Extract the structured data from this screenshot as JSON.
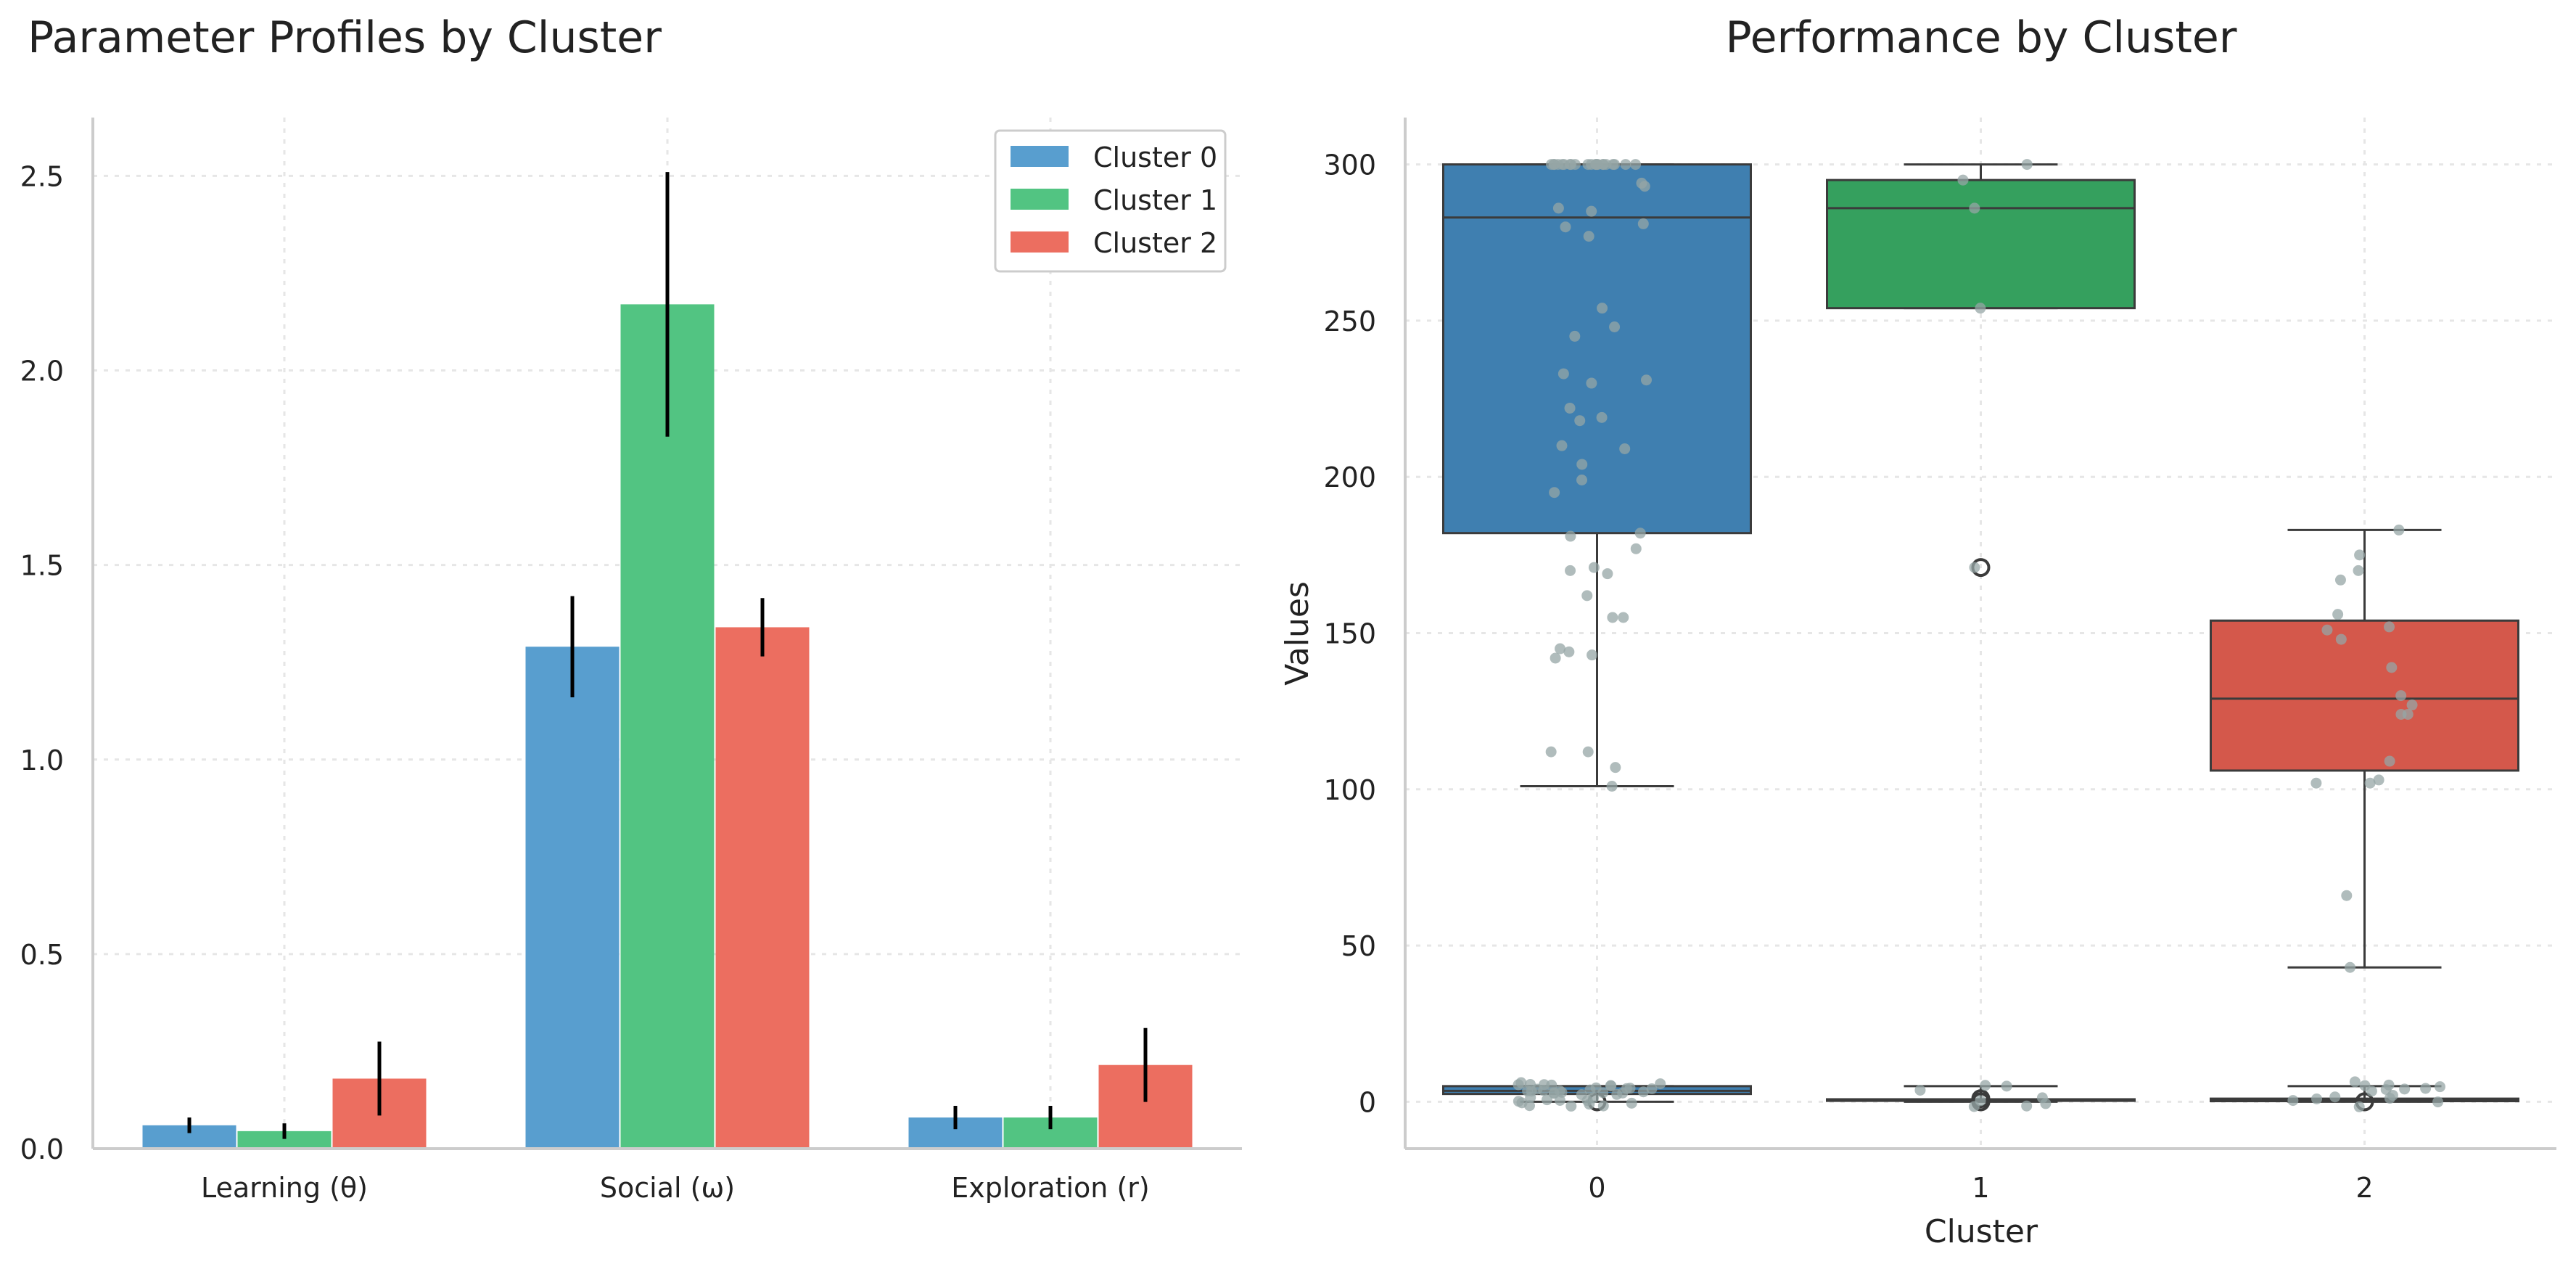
{
  "colors": {
    "cluster0": "#589ecf",
    "cluster1": "#52c482",
    "cluster2": "#ec6e60",
    "box0": "#3f7fb0",
    "box1": "#35a05e",
    "box2": "#d4584b",
    "points": "#95a5a6",
    "axis": "#cccccc",
    "grid": "#e6e6e6",
    "text": "#222222"
  },
  "chart_data": [
    {
      "type": "bar",
      "title": "Parameter Profiles by Cluster",
      "xlabel": "",
      "ylabel": "",
      "categories": [
        "Learning (θ)",
        "Social (ω)",
        "Exploration (r)"
      ],
      "series": [
        {
          "name": "Cluster 0",
          "color_key": "cluster0",
          "values": [
            0.06,
            1.29,
            0.08
          ],
          "errors": [
            0.02,
            0.13,
            0.03
          ]
        },
        {
          "name": "Cluster 1",
          "color_key": "cluster1",
          "values": [
            0.045,
            2.17,
            0.08
          ],
          "errors": [
            0.02,
            0.34,
            0.03
          ]
        },
        {
          "name": "Cluster 2",
          "color_key": "cluster2",
          "values": [
            0.18,
            1.34,
            0.215
          ],
          "errors": [
            0.095,
            0.075,
            0.095
          ]
        }
      ],
      "ylim": [
        0,
        2.65
      ],
      "yticks": [
        "0.0",
        "0.5",
        "1.0",
        "1.5",
        "2.0",
        "2.5"
      ],
      "grid": true,
      "legend": "top-right"
    },
    {
      "type": "box",
      "title": "Performance by Cluster",
      "xlabel": "Cluster",
      "ylabel": "Values",
      "categories": [
        "0",
        "1",
        "2"
      ],
      "ylim": [
        -15,
        315
      ],
      "yticks": [
        "0",
        "50",
        "100",
        "150",
        "200",
        "250",
        "300"
      ],
      "grid": true,
      "boxes_upper": [
        {
          "category": "0",
          "color_key": "box0",
          "whisker_low": 101,
          "q1": 182,
          "median": 283,
          "q3": 300,
          "whisker_high": 300,
          "outliers": []
        },
        {
          "category": "1",
          "color_key": "box1",
          "whisker_low": 254,
          "q1": 254,
          "median": 286,
          "q3": 295,
          "whisker_high": 300,
          "outliers": [
            171
          ]
        },
        {
          "category": "2",
          "color_key": "box2",
          "whisker_low": 43,
          "q1": 106,
          "median": 129,
          "q3": 154,
          "whisker_high": 183,
          "outliers": []
        }
      ],
      "boxes_lower": [
        {
          "category": "0",
          "color_key": "box0",
          "whisker_low": 0,
          "q1": 2.5,
          "median": 3.5,
          "q3": 5,
          "whisker_high": 5,
          "outliers": [
            0
          ]
        },
        {
          "category": "1",
          "color_key": "box1",
          "whisker_low": 0,
          "q1": 0.3,
          "median": 0.5,
          "q3": 0.8,
          "whisker_high": 5,
          "outliers": [
            0,
            1
          ]
        },
        {
          "category": "2",
          "color_key": "box2",
          "whisker_low": 0,
          "q1": 0.2,
          "median": 0.5,
          "q3": 1,
          "whisker_high": 5,
          "outliers": [
            0
          ]
        }
      ],
      "points": [
        {
          "category": 0,
          "values": [
            300,
            300,
            300,
            300,
            300,
            300,
            300,
            300,
            300,
            300,
            300,
            300,
            300,
            300,
            300,
            300,
            300,
            300,
            300,
            300,
            300,
            300,
            294,
            293,
            286,
            285,
            281,
            280,
            277,
            254,
            248,
            245,
            233,
            231,
            230,
            222,
            219,
            218,
            210,
            209,
            204,
            199,
            195,
            182,
            181,
            177,
            171,
            170,
            169,
            162,
            155,
            155,
            145,
            144,
            143,
            142,
            112,
            112,
            107,
            101
          ]
        },
        {
          "category": 1,
          "values": [
            300,
            295,
            286,
            254,
            171
          ]
        },
        {
          "category": 2,
          "values": [
            183,
            175,
            170,
            167,
            156,
            152,
            151,
            148,
            139,
            130,
            127,
            124,
            124,
            109,
            103,
            102,
            102,
            66,
            43
          ]
        },
        {
          "category": 0,
          "values": [
            5,
            5,
            5,
            5,
            5,
            5,
            5,
            5,
            5,
            5,
            5,
            5,
            4,
            4,
            4,
            4,
            4,
            3,
            3,
            3,
            3,
            2,
            2,
            2,
            1,
            1,
            1,
            1,
            0,
            0,
            0,
            0,
            0,
            0,
            0,
            0,
            0,
            0
          ]
        },
        {
          "category": 1,
          "values": [
            5,
            5,
            5,
            0,
            0,
            1,
            1,
            0
          ]
        },
        {
          "category": 2,
          "values": [
            5,
            5,
            5,
            5,
            5,
            5,
            5,
            5,
            0,
            0,
            0,
            1,
            1,
            0,
            0
          ]
        }
      ]
    }
  ]
}
